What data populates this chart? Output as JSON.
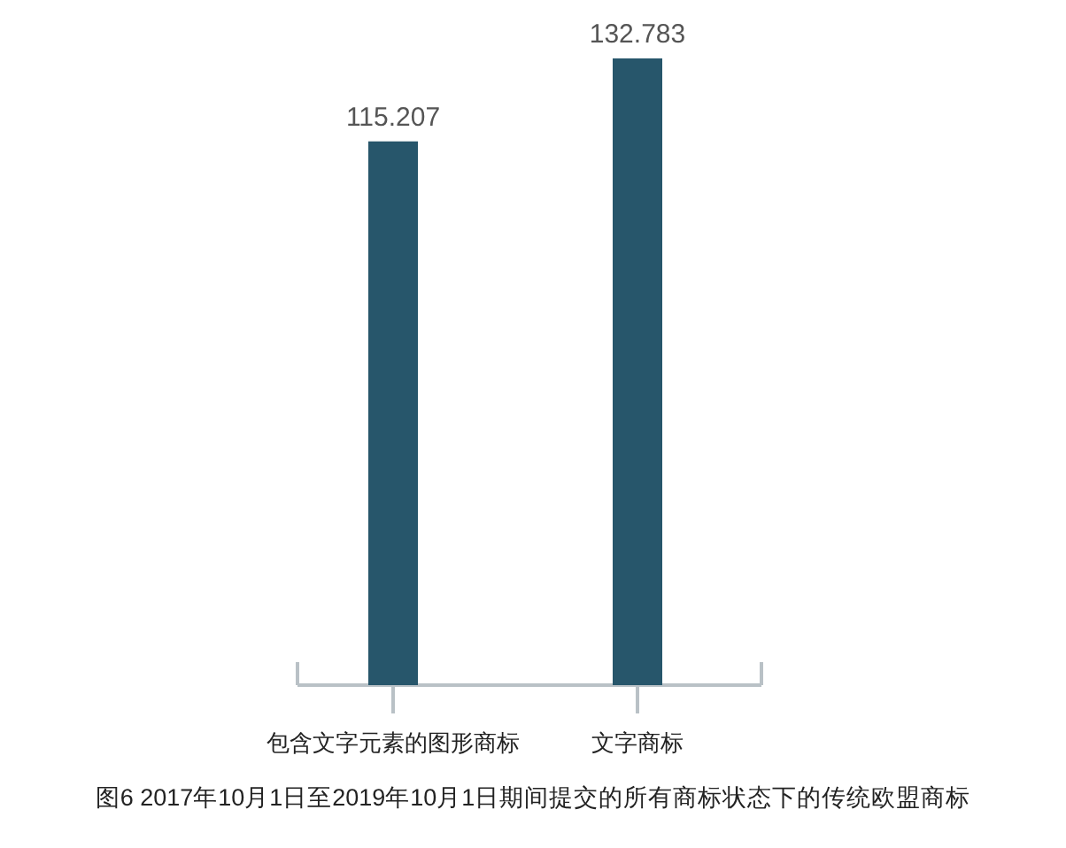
{
  "chart_data": {
    "type": "bar",
    "categories": [
      "包含文字元素的图形商标",
      "文字商标"
    ],
    "values": [
      115.207,
      132.783
    ],
    "color": "#27566b",
    "data_labels": true,
    "annotations": [
      "图6 2017年10月1日至2019年10月1日期间提交的所有商标状态下的传统欧盟商标"
    ]
  }
}
